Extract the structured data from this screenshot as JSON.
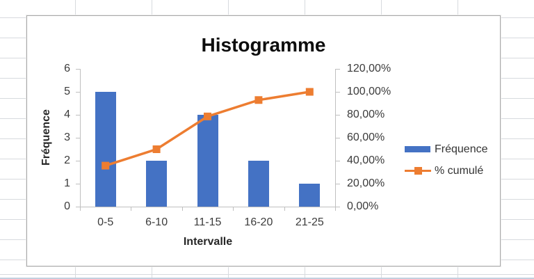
{
  "chart": {
    "title": "Histogramme",
    "y_axis_title": "Fréquence",
    "x_axis_title": "Intervalle",
    "legend": {
      "items": [
        {
          "label": "Fréquence"
        },
        {
          "label": "% cumulé"
        }
      ]
    }
  },
  "chart_data": {
    "type": "combo",
    "subtypes": [
      "bar",
      "line"
    ],
    "title": "Histogramme",
    "categories": [
      "0-5",
      "6-10",
      "11-15",
      "16-20",
      "21-25"
    ],
    "series": [
      {
        "name": "Fréquence",
        "type": "bar",
        "axis": "left",
        "values": [
          5,
          2,
          4,
          2,
          1
        ],
        "color": "#4472C4"
      },
      {
        "name": "% cumulé",
        "type": "line",
        "axis": "right",
        "values": [
          35.71,
          50.0,
          78.57,
          92.86,
          100.0
        ],
        "unit": "%",
        "marker": "square",
        "color": "#ED7D31"
      }
    ],
    "left_axis": {
      "label": "Fréquence",
      "min": 0,
      "max": 6,
      "tick_step": 1,
      "tick_labels": [
        "0",
        "1",
        "2",
        "3",
        "4",
        "5",
        "6"
      ]
    },
    "right_axis": {
      "min": 0,
      "max": 120,
      "tick_step": 20,
      "tick_labels": [
        "0,00%",
        "20,00%",
        "40,00%",
        "60,00%",
        "80,00%",
        "100,00%",
        "120,00%"
      ]
    },
    "x_axis": {
      "label": "Intervalle"
    },
    "legend_position": "right",
    "gridlines": false,
    "plot_background": "#ffffff",
    "axis_color": "#bfbfbf"
  }
}
